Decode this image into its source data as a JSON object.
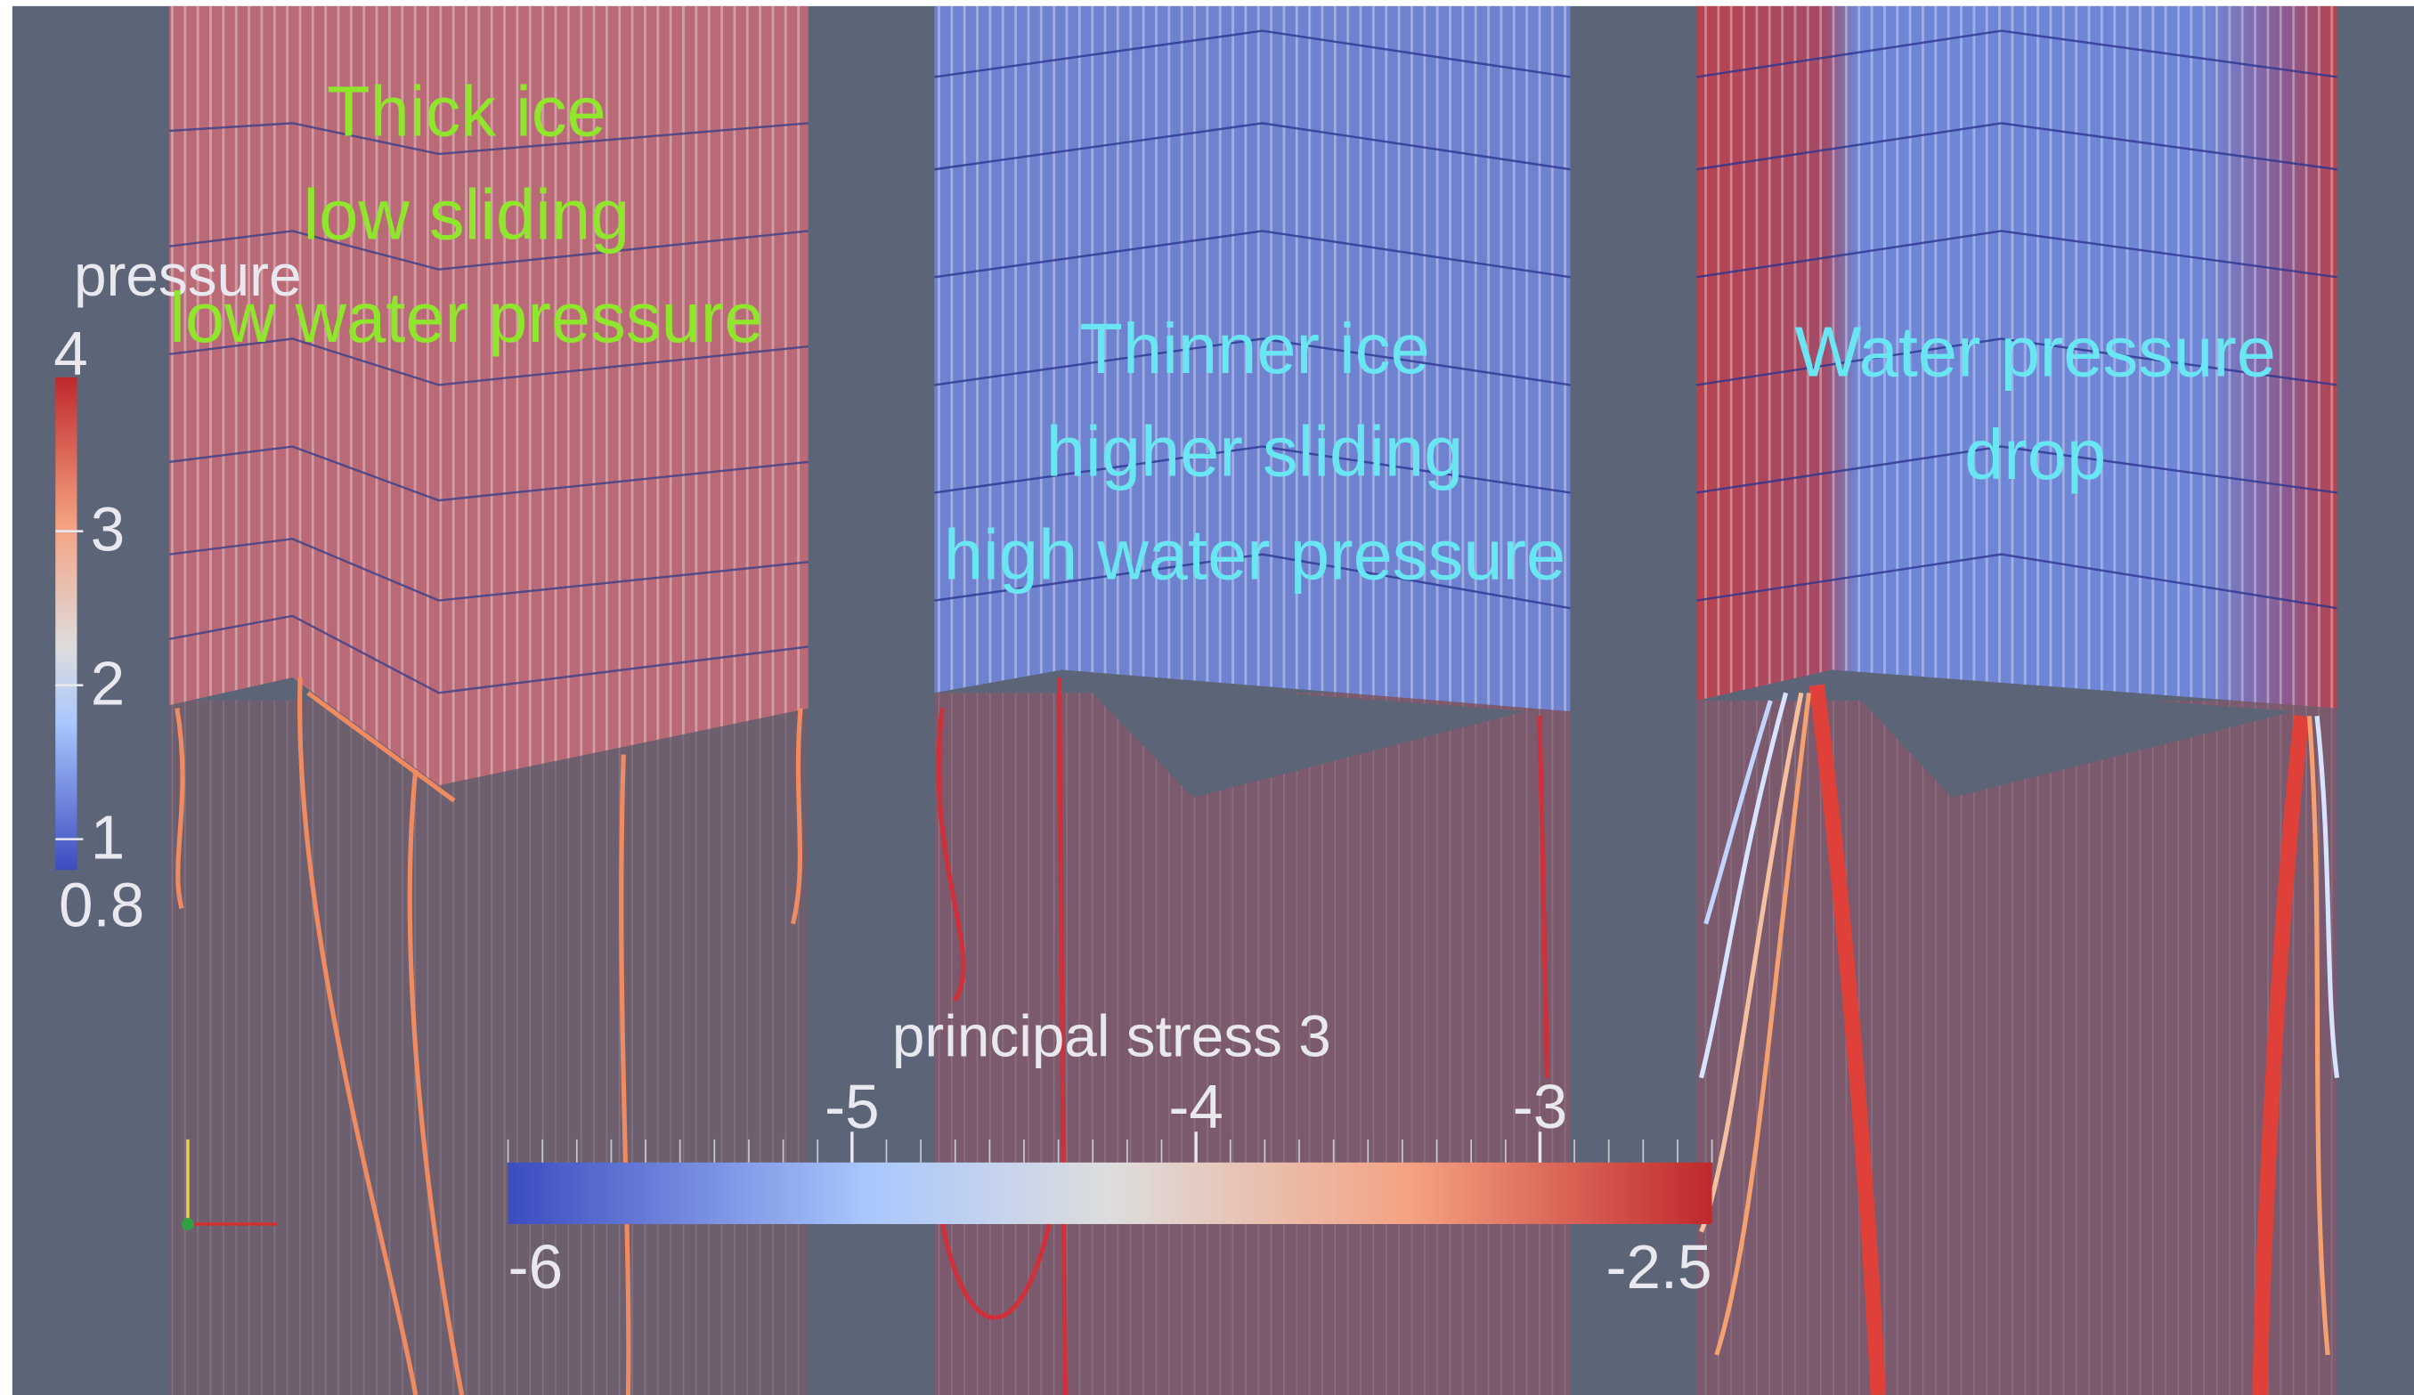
{
  "panels": [
    {
      "lines": [
        "Thick ice",
        "low sliding",
        "low water pressure"
      ]
    },
    {
      "lines": [
        "Thinner ice",
        "higher sliding",
        "high water pressure"
      ]
    },
    {
      "lines": [
        "Water pressure",
        "drop"
      ]
    }
  ],
  "colorbars": {
    "pressure": {
      "title": "pressure",
      "range": [
        0.8,
        4
      ],
      "ticks": [
        1,
        2,
        3
      ]
    },
    "stress": {
      "title": "principal stress 3",
      "range": [
        -6,
        -2.5
      ],
      "ticks": [
        -5,
        -4,
        -3
      ]
    }
  }
}
